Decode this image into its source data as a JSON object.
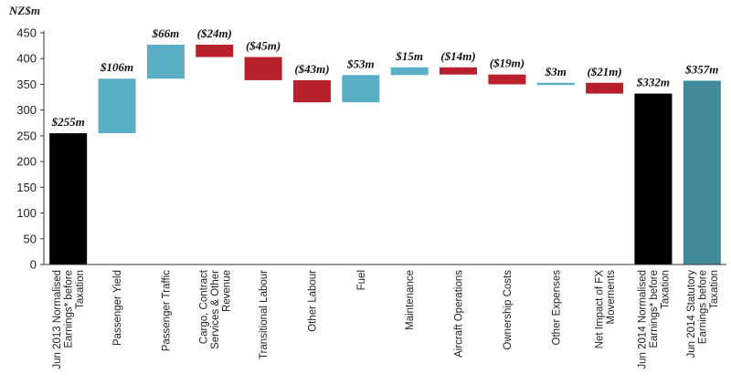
{
  "chart_data": {
    "type": "waterfall",
    "unit_label": "NZ$m",
    "ylim": [
      0,
      450
    ],
    "yticks": [
      0,
      50,
      100,
      150,
      200,
      250,
      300,
      350,
      400,
      450
    ],
    "grid": false,
    "colors": {
      "total_start": "#000000",
      "increase": "#5bafc4",
      "decrease": "#b8202c",
      "total_end": "#000000",
      "statutory": "#3f8a9b"
    },
    "items": [
      {
        "category": [
          "Jun 2013 Normalised",
          "Earnings* before",
          "Taxation"
        ],
        "kind": "total",
        "color_key": "total_start",
        "start": 0,
        "end": 255,
        "label": "$255m"
      },
      {
        "category": [
          "Passenger Yield"
        ],
        "kind": "increase",
        "color_key": "increase",
        "start": 255,
        "end": 361,
        "label": "$106m"
      },
      {
        "category": [
          "Passenger Traffic"
        ],
        "kind": "increase",
        "color_key": "increase",
        "start": 361,
        "end": 427,
        "label": "$66m"
      },
      {
        "category": [
          "Cargo, Contract",
          "Services & Other",
          "Revenue"
        ],
        "kind": "decrease",
        "color_key": "decrease",
        "start": 427,
        "end": 403,
        "label": "($24m)"
      },
      {
        "category": [
          "Transitional Labour"
        ],
        "kind": "decrease",
        "color_key": "decrease",
        "start": 403,
        "end": 358,
        "label": "($45m)"
      },
      {
        "category": [
          "Other Labour"
        ],
        "kind": "decrease",
        "color_key": "decrease",
        "start": 358,
        "end": 315,
        "label": "($43m)"
      },
      {
        "category": [
          "Fuel"
        ],
        "kind": "increase",
        "color_key": "increase",
        "start": 315,
        "end": 368,
        "label": "$53m"
      },
      {
        "category": [
          "Maintenance"
        ],
        "kind": "increase",
        "color_key": "increase",
        "start": 368,
        "end": 383,
        "label": "$15m"
      },
      {
        "category": [
          "Aircraft Operations"
        ],
        "kind": "decrease",
        "color_key": "decrease",
        "start": 383,
        "end": 369,
        "label": "($14m)"
      },
      {
        "category": [
          "Ownership Costs"
        ],
        "kind": "decrease",
        "color_key": "decrease",
        "start": 369,
        "end": 350,
        "label": "($19m)"
      },
      {
        "category": [
          "Other Expenses"
        ],
        "kind": "increase",
        "color_key": "increase",
        "start": 350,
        "end": 353,
        "label": "$3m"
      },
      {
        "category": [
          "Net Impact of FX",
          "Movements"
        ],
        "kind": "decrease",
        "color_key": "decrease",
        "start": 353,
        "end": 332,
        "label": "($21m)"
      },
      {
        "category": [
          "Jun 2014 Normalised",
          "Earnings* before",
          "Taxation"
        ],
        "kind": "total",
        "color_key": "total_end",
        "start": 0,
        "end": 332,
        "label": "$332m"
      },
      {
        "category": [
          "Jun 2014 Statutory",
          "Earnings before",
          "Taxation"
        ],
        "kind": "total",
        "color_key": "statutory",
        "start": 0,
        "end": 357,
        "label": "$357m"
      }
    ]
  }
}
